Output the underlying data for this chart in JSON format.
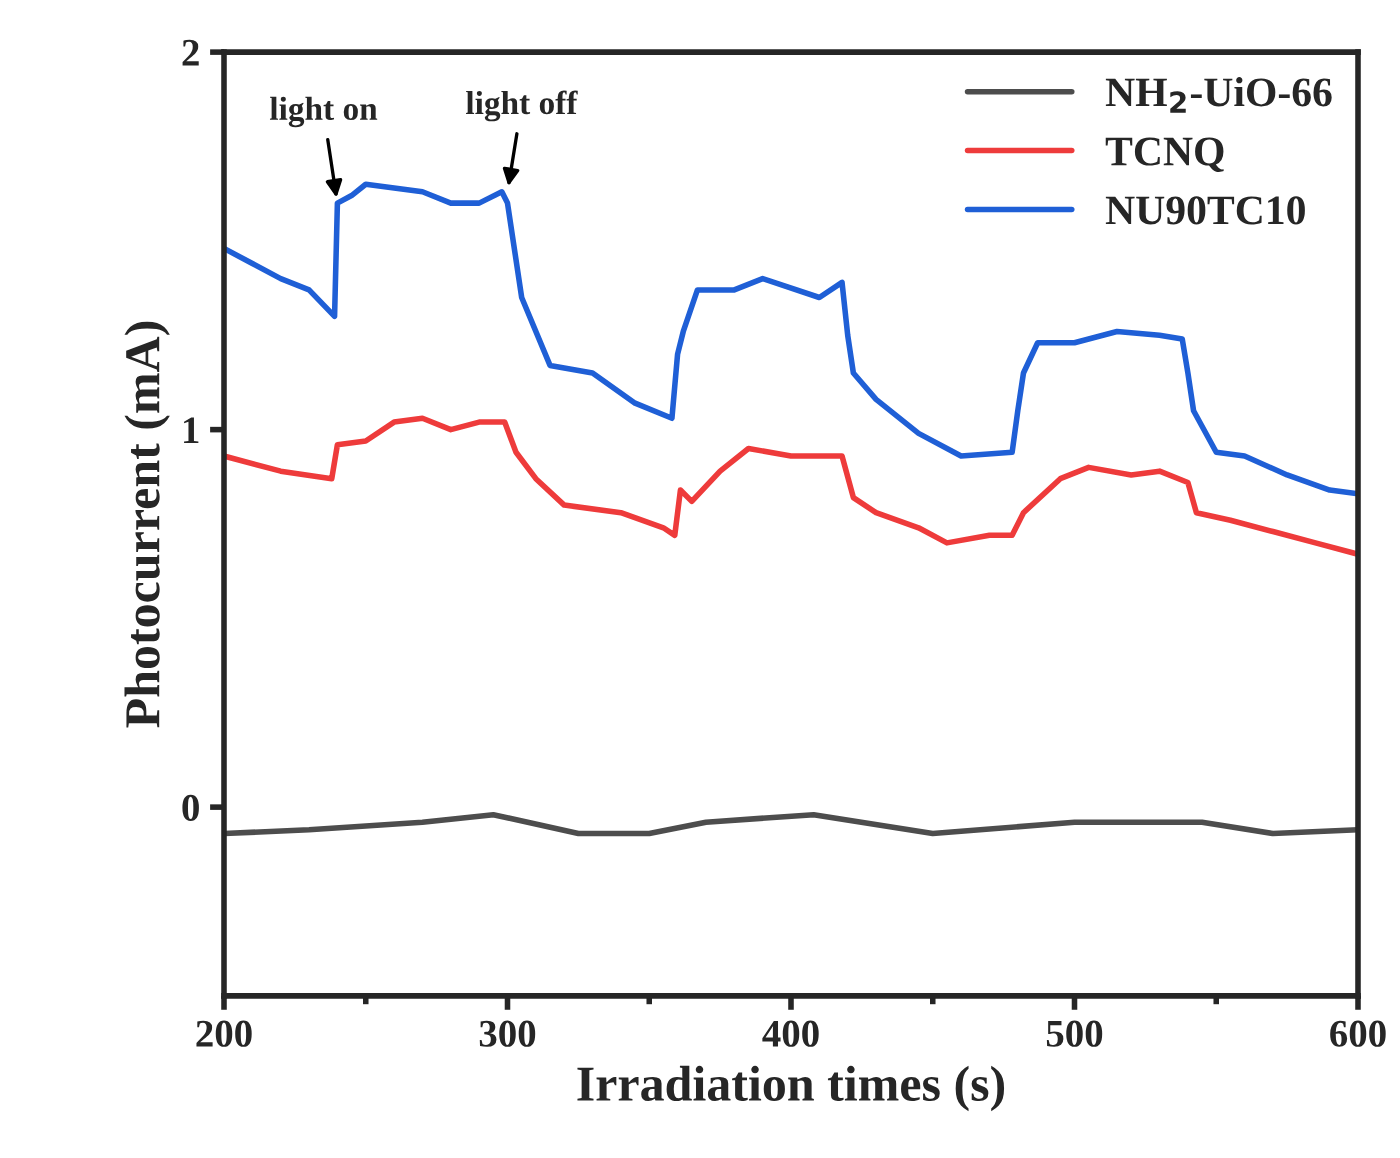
{
  "chart_data": {
    "type": "line",
    "xlabel": "Irradiation times (s)",
    "ylabel": "Photocurrent (mA)",
    "xlim": [
      200,
      600
    ],
    "xticks": [
      200,
      300,
      400,
      500,
      600
    ],
    "ylim": [
      -0.5,
      2
    ],
    "yticks": [
      0,
      1,
      2
    ],
    "grid": false,
    "legend": "top right",
    "marker": "none",
    "line_style": "solid",
    "annotations": [
      {
        "text": "light on",
        "x": 240,
        "y": 1.6
      },
      {
        "text": "light off",
        "x": 300,
        "y": 1.63
      }
    ],
    "series": [
      {
        "name": "NH$_{2}$-UiO-66",
        "color": "#4d4d4d",
        "x": [
          200,
          230,
          270,
          295,
          325,
          350,
          370,
          408,
          450,
          500,
          545,
          570,
          600
        ],
        "values": [
          -0.07,
          -0.06,
          -0.04,
          -0.02,
          -0.07,
          -0.07,
          -0.04,
          -0.02,
          -0.07,
          -0.04,
          -0.04,
          -0.07,
          -0.06
        ]
      },
      {
        "name": "TCNQ",
        "color": "#ee3b3b",
        "x": [
          200,
          220,
          238,
          240,
          250,
          260,
          270,
          280,
          290,
          299,
          303,
          310,
          320,
          340,
          355,
          359,
          361,
          365,
          375,
          385,
          400,
          418,
          422,
          430,
          445,
          455,
          470,
          478,
          482,
          495,
          505,
          520,
          530,
          540,
          543,
          555,
          570,
          585,
          600
        ],
        "values": [
          0.93,
          0.89,
          0.87,
          0.96,
          0.97,
          1.02,
          1.03,
          1.0,
          1.02,
          1.02,
          0.94,
          0.87,
          0.8,
          0.78,
          0.74,
          0.72,
          0.84,
          0.81,
          0.89,
          0.95,
          0.93,
          0.93,
          0.82,
          0.78,
          0.74,
          0.7,
          0.72,
          0.72,
          0.78,
          0.87,
          0.9,
          0.88,
          0.89,
          0.86,
          0.78,
          0.76,
          0.73,
          0.7,
          0.67
        ]
      },
      {
        "name": "NU90TC10",
        "color": "#1f5fd6",
        "x": [
          200,
          210,
          220,
          230,
          239,
          240,
          245,
          250,
          260,
          270,
          280,
          290,
          298,
          300,
          305,
          315,
          330,
          345,
          358,
          360,
          362,
          367,
          380,
          390,
          410,
          418,
          420,
          422,
          430,
          445,
          460,
          478,
          480,
          482,
          487,
          500,
          515,
          530,
          538,
          540,
          542,
          550,
          560,
          575,
          590,
          600
        ],
        "values": [
          1.48,
          1.44,
          1.4,
          1.37,
          1.3,
          1.6,
          1.62,
          1.65,
          1.64,
          1.63,
          1.6,
          1.6,
          1.63,
          1.6,
          1.35,
          1.17,
          1.15,
          1.07,
          1.03,
          1.2,
          1.26,
          1.37,
          1.37,
          1.4,
          1.35,
          1.39,
          1.25,
          1.15,
          1.08,
          0.99,
          0.93,
          0.94,
          1.05,
          1.15,
          1.23,
          1.23,
          1.26,
          1.25,
          1.24,
          1.15,
          1.05,
          0.94,
          0.93,
          0.88,
          0.84,
          0.83
        ]
      }
    ]
  }
}
